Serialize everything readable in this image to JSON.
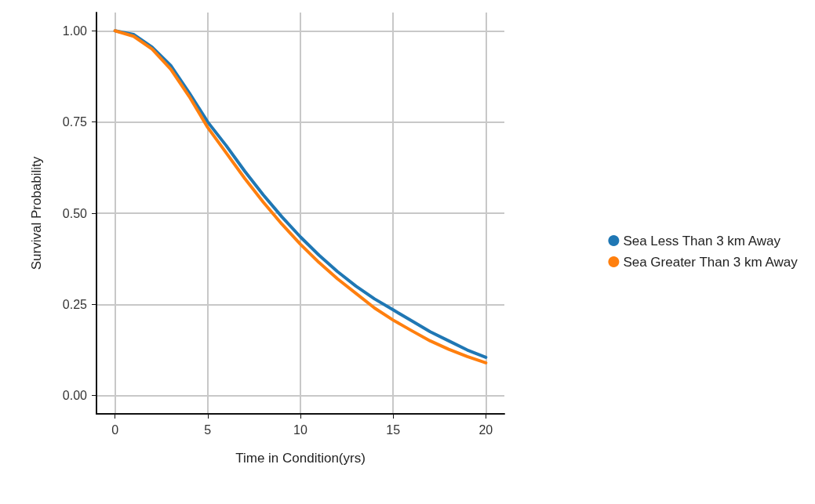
{
  "chart_data": {
    "type": "line",
    "xlabel": "Time in Condition(yrs)",
    "ylabel": "Survival Probability",
    "x": [
      0,
      1,
      2,
      3,
      4,
      5,
      6,
      7,
      8,
      9,
      10,
      11,
      12,
      13,
      14,
      15,
      16,
      17,
      18,
      19,
      20
    ],
    "series": [
      {
        "name": "Sea Less Than 3 km Away",
        "color": "#1f77b4",
        "values": [
          1.0,
          0.99,
          0.955,
          0.905,
          0.83,
          0.75,
          0.685,
          0.615,
          0.55,
          0.49,
          0.435,
          0.385,
          0.34,
          0.3,
          0.265,
          0.235,
          0.205,
          0.175,
          0.15,
          0.125,
          0.105
        ]
      },
      {
        "name": "Sea Greater Than 3 km Away",
        "color": "#ff7f0e",
        "values": [
          1.0,
          0.985,
          0.95,
          0.895,
          0.82,
          0.735,
          0.665,
          0.595,
          0.53,
          0.47,
          0.415,
          0.365,
          0.32,
          0.28,
          0.24,
          0.207,
          0.178,
          0.15,
          0.127,
          0.107,
          0.09
        ]
      }
    ],
    "xlim": [
      -1,
      21
    ],
    "xticks": [
      0,
      5,
      10,
      15,
      20
    ],
    "ylim": [
      -0.05,
      1.05
    ],
    "yticks": [
      {
        "value": 0,
        "label": "0.00"
      },
      {
        "value": 0.25,
        "label": "0.25"
      },
      {
        "value": 0.5,
        "label": "0.50"
      },
      {
        "value": 0.75,
        "label": "0.75"
      },
      {
        "value": 1,
        "label": "1.00"
      }
    ],
    "grid": true,
    "legend": "right",
    "marker": "none",
    "line_style": "solid"
  }
}
